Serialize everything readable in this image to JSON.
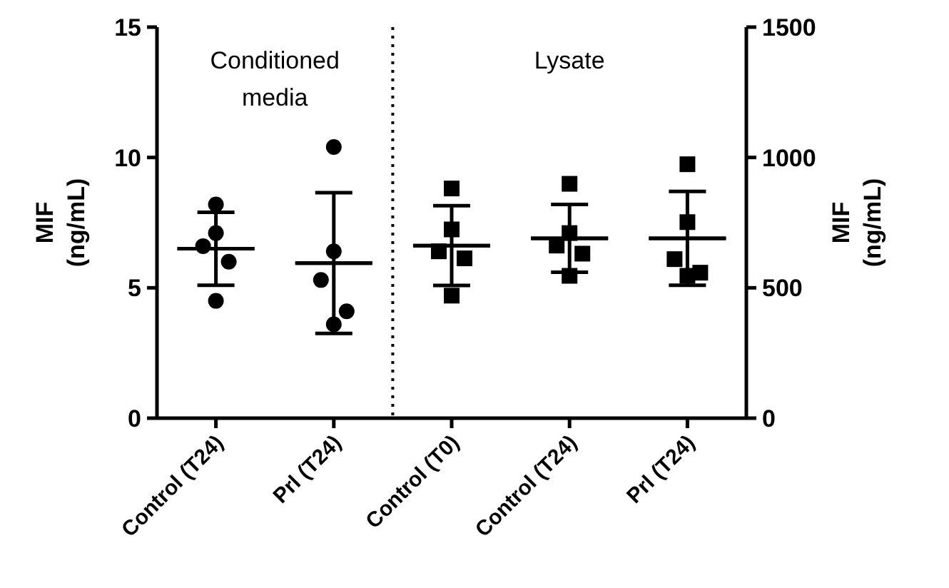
{
  "chart_data": {
    "type": "scatter",
    "categories": [
      "Control (T24)",
      "Prl (T24)",
      "Control (T0)",
      "Control (T24)",
      "Prl (T24)"
    ],
    "ylabel": "MIF\n(ng/mL)",
    "y2label": "MIF\n(ng/mL)",
    "ylim": [
      0,
      15
    ],
    "yticks": [
      0,
      5,
      10,
      15
    ],
    "y2lim": [
      0,
      1500
    ],
    "y2ticks": [
      0,
      500,
      1000,
      1500
    ],
    "annotations": [
      "Conditioned media",
      "Lysate"
    ],
    "series": [
      {
        "color": "#000000",
        "marker": "circle",
        "values": [
          8.2,
          10.4,
          null,
          null,
          null
        ]
      },
      {
        "color": "#000000",
        "marker": "circle",
        "values": [
          7.1,
          6.4,
          null,
          null,
          null
        ]
      },
      {
        "color": "#000000",
        "marker": "circle",
        "values": [
          6.6,
          5.3,
          null,
          null,
          null
        ]
      },
      {
        "color": "#000000",
        "marker": "circle",
        "values": [
          6.0,
          4.1,
          null,
          null,
          null
        ]
      },
      {
        "color": "#000000",
        "marker": "circle",
        "values": [
          4.5,
          3.6,
          null,
          null,
          null
        ]
      },
      {
        "color": "#000000",
        "marker": "square",
        "axis": "y2",
        "values": [
          null,
          null,
          881,
          899,
          974
        ]
      },
      {
        "color": "#000000",
        "marker": "square",
        "axis": "y2",
        "values": [
          null,
          null,
          724,
          710,
          752
        ]
      },
      {
        "color": "#000000",
        "marker": "square",
        "axis": "y2",
        "values": [
          null,
          null,
          640,
          662,
          610
        ]
      },
      {
        "color": "#000000",
        "marker": "square",
        "axis": "y2",
        "values": [
          null,
          null,
          613,
          631,
          558
        ]
      },
      {
        "color": "#000000",
        "marker": "square",
        "axis": "y2",
        "values": [
          null,
          null,
          470,
          546,
          546
        ]
      },
      {
        "type": "box",
        "color": "#000000",
        "boxes": [
          {
            "low": 5.1,
            "q1": 6.5,
            "median": 6.5,
            "q3": 6.5,
            "high": 7.9
          },
          {
            "low": 3.25,
            "q1": 5.95,
            "median": 5.95,
            "q3": 5.95,
            "high": 8.65
          },
          null,
          null,
          null
        ]
      },
      {
        "type": "box",
        "color": "#000000",
        "axis": "y2",
        "boxes": [
          null,
          null,
          {
            "low": 509,
            "q1": 662,
            "median": 662,
            "q3": 662,
            "high": 815
          },
          {
            "low": 560,
            "q1": 690,
            "median": 690,
            "q3": 690,
            "high": 820
          },
          {
            "low": 510,
            "q1": 690,
            "median": 690,
            "q3": 690,
            "high": 870
          }
        ]
      }
    ]
  }
}
